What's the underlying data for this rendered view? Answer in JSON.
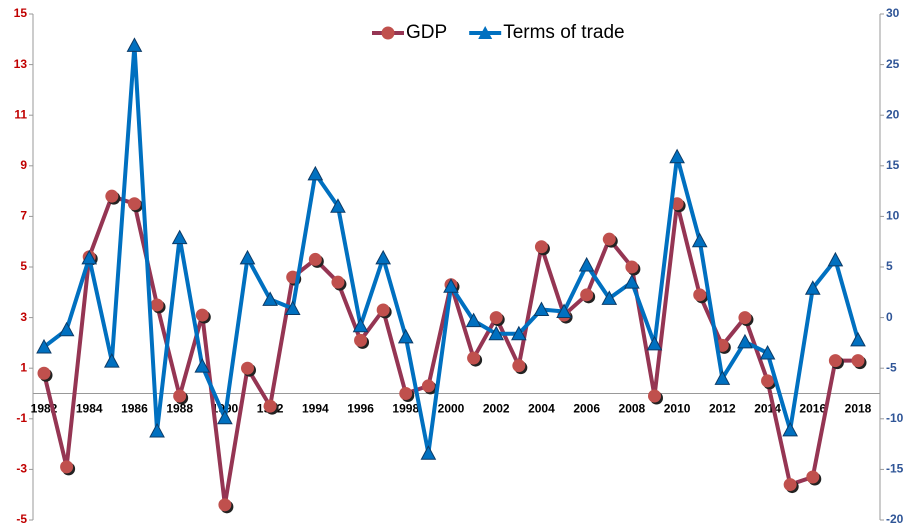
{
  "chart_data": {
    "type": "line",
    "categories": [
      "1982",
      null,
      "1984",
      null,
      "1986",
      null,
      "1988",
      null,
      "1990",
      null,
      "1992",
      null,
      "1994",
      null,
      "1996",
      null,
      "1998",
      null,
      "2000",
      null,
      "2002",
      null,
      "2004",
      null,
      "2006",
      null,
      "2008",
      null,
      "2010",
      null,
      "2012",
      null,
      "2014",
      null,
      "2016",
      null,
      "2018"
    ],
    "series": [
      {
        "name": "GDP",
        "color": "#953553",
        "marker_color": "#c0504d",
        "marker": "circle",
        "axis": "y",
        "values": [
          0.8,
          -2.9,
          5.4,
          7.8,
          7.5,
          3.5,
          -0.1,
          3.1,
          -4.4,
          1.0,
          -0.5,
          4.6,
          5.3,
          4.4,
          2.1,
          3.3,
          0.0,
          0.3,
          4.3,
          1.4,
          3.0,
          1.1,
          5.8,
          3.1,
          3.9,
          6.1,
          5.0,
          -0.1,
          7.5,
          3.9,
          1.9,
          3.0,
          0.5,
          -3.6,
          -3.3,
          1.3,
          1.3
        ]
      },
      {
        "name": "Terms of trade",
        "color": "#0070c0",
        "marker_color": "#0070c0",
        "marker": "triangle",
        "axis": "y2",
        "values": [
          -2.9,
          -1.2,
          5.9,
          -4.3,
          26.9,
          -11.2,
          7.9,
          -4.8,
          -9.9,
          5.9,
          1.8,
          0.9,
          14.2,
          11.0,
          -0.8,
          5.9,
          -1.9,
          -13.4,
          3.1,
          -0.3,
          -1.6,
          -1.6,
          0.8,
          0.6,
          5.2,
          1.9,
          3.5,
          -2.6,
          15.9,
          7.6,
          -6.0,
          -2.4,
          -3.5,
          -11.1,
          2.9,
          5.7,
          -2.2
        ]
      }
    ],
    "ylim": [
      -5,
      15
    ],
    "yticks": [
      -5,
      -3,
      -1,
      1,
      3,
      5,
      7,
      9,
      11,
      13,
      15
    ],
    "ycolor": "#c00000",
    "y2lim": [
      -20,
      30
    ],
    "y2ticks": [
      -20,
      -15,
      -10,
      -5,
      0,
      5,
      10,
      15,
      20,
      25,
      30
    ],
    "y2color": "#2f5597",
    "grid": false,
    "legend": "top"
  }
}
